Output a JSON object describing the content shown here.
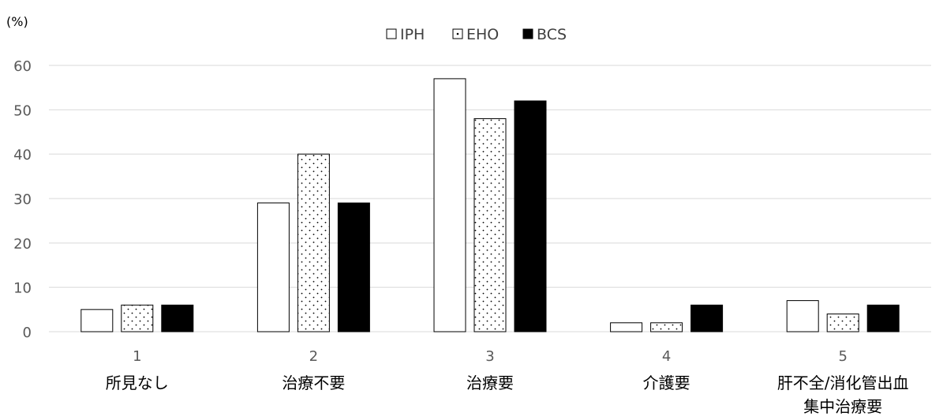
{
  "chart_data": {
    "type": "bar",
    "ylabel": "(%)",
    "ylim": [
      0,
      60
    ],
    "yticks": [
      0,
      10,
      20,
      30,
      40,
      50,
      60
    ],
    "grid": true,
    "legend_position": "top-center",
    "categories": [
      {
        "number": "1",
        "lines": [
          "所見なし"
        ]
      },
      {
        "number": "2",
        "lines": [
          "治療不要"
        ]
      },
      {
        "number": "3",
        "lines": [
          "治療要"
        ]
      },
      {
        "number": "4",
        "lines": [
          "介護要"
        ]
      },
      {
        "number": "5",
        "lines": [
          "肝不全/消化管出血",
          "集中治療要"
        ]
      }
    ],
    "series": [
      {
        "name": "IPH",
        "pattern": "white",
        "values": [
          5,
          29,
          57,
          2,
          7
        ]
      },
      {
        "name": "EHO",
        "pattern": "dotted",
        "values": [
          6,
          40,
          48,
          2,
          4
        ]
      },
      {
        "name": "BCS",
        "pattern": "black",
        "values": [
          6,
          29,
          52,
          6,
          6
        ]
      }
    ],
    "colors": {
      "grid": "#d9d9d9",
      "bar_outline": "#000000",
      "black_fill": "#000000",
      "white_fill": "#ffffff",
      "tick_text": "#595959"
    }
  }
}
